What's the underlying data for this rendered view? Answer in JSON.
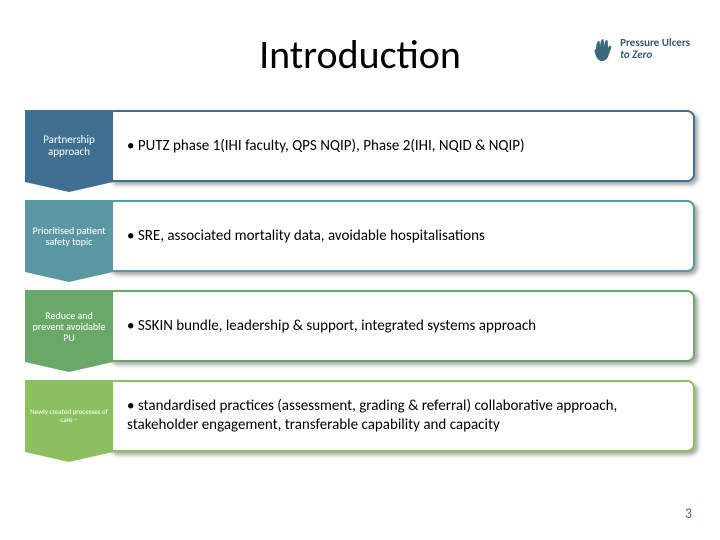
{
  "title": "Introduction",
  "logo": {
    "line1": "Pressure Ulcers",
    "line2": "to Zero",
    "hand_color": "#3a6a7a",
    "text_color": "#3a5a6a"
  },
  "rows": [
    {
      "label": "Partnership approach",
      "label_fontsize": 11,
      "content": "• PUTZ phase 1(IHI faculty, QPS NQIP), Phase 2(IHI, NQID & NQIP)",
      "box_color": "#3f6f91",
      "border_color": "#3f6f91"
    },
    {
      "label": "Prioritised patient safety topic",
      "label_fontsize": 10,
      "content": "• SRE, associated mortality data, avoidable hospitalisations",
      "box_color": "#5a97a0",
      "border_color": "#5a97a0"
    },
    {
      "label": "Reduce and prevent avoidable PU",
      "label_fontsize": 10,
      "content": "• SSKIN bundle, leadership & support, integrated systems approach",
      "box_color": "#6aa86a",
      "border_color": "#6aa86a"
    },
    {
      "label": "Newly created processes of care –",
      "label_fontsize": 7,
      "content": "• standardised practices (assessment, grading  & referral) collaborative approach, stakeholder engagement, transferable capability and capacity",
      "box_color": "#8bbf5f",
      "border_color": "#8bbf5f"
    }
  ],
  "page_number": "3",
  "background_color": "#ffffff"
}
